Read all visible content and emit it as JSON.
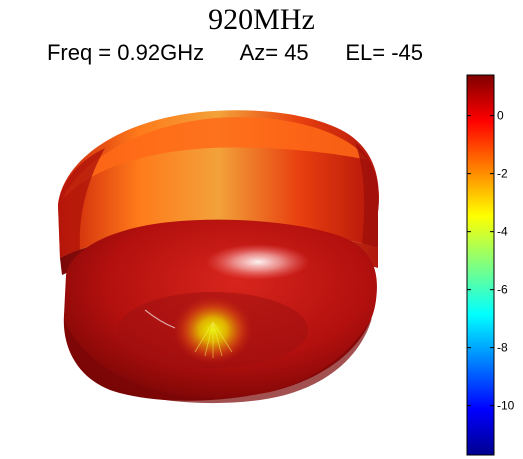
{
  "title": "920MHz",
  "subtitle": {
    "freq": "Freq = 0.92GHz",
    "az": "Az= 45",
    "el": "EL= -45"
  },
  "chart_data": {
    "type": "3d-radiation-pattern",
    "title": "920MHz",
    "frequency_ghz": 0.92,
    "azimuth_deg": 45,
    "elevation_deg": -45,
    "colorbar": {
      "ticks": [
        0,
        -2,
        -4,
        -6,
        -8,
        -10
      ],
      "tick_labels": [
        "0",
        "-2",
        "-4",
        "-6",
        "-8",
        "-10"
      ],
      "range": [
        -11.7,
        1.4
      ],
      "colormap": "jet"
    },
    "shape": "torus (doughnut) pattern"
  }
}
